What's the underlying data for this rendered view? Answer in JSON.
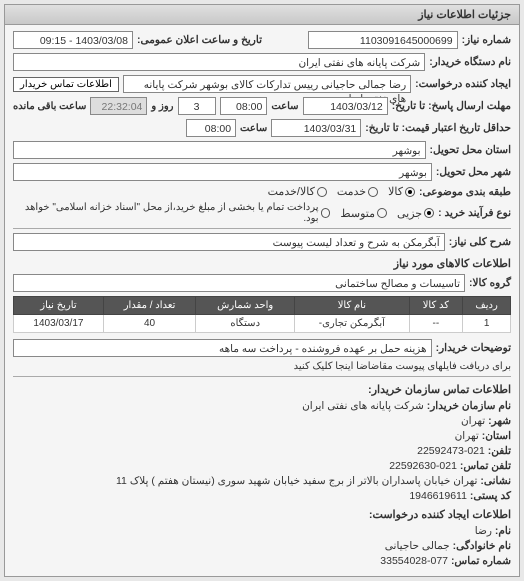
{
  "panel_title": "جزئیات اطلاعات نیاز",
  "fields": {
    "shomare_niaz_label": "شماره نیاز:",
    "shomare_niaz": "1103091645000699",
    "tarikh_saat_elan_label": "تاریخ و ساعت اعلان عمومی:",
    "tarikh_saat_elan": "1403/03/08 - 09:15",
    "dastgah_kharidar_label": "نام دستگاه خریدار:",
    "dastgah_kharidar": "شرکت پایانه های نفتی ایران",
    "ijad_konande_label": "ایجاد کننده درخواست:",
    "ijad_konande": "رضا جمالی حاجیانی رییس تدارکات کالای بوشهر شرکت پایانه های نفتی ایران",
    "etelaat_tamas_btn": "اطلاعات تماس خریدار",
    "mohlat_ersal_label": "مهلت ارسال پاسخ: تا تاریخ:",
    "mohlat_ersal_date": "1403/03/12",
    "saat_label": "ساعت",
    "mohlat_ersal_time": "08:00",
    "rooz_label": "روز و",
    "rooz_val": "3",
    "baghi_label": "ساعت باقی مانده",
    "baghi_time": "22:32:04",
    "hadaghal_tahvil_label": "حداقل تاریخ اعتبار قیمت: تا تاریخ:",
    "hadaghal_tahvil_date": "1403/03/31",
    "hadaghal_tahvil_time": "08:00",
    "ostan_tahvil_label": "استان محل تحویل:",
    "ostan_tahvil": "بوشهر",
    "shahr_tahvil_label": "شهر محل تحویل:",
    "shahr_tahvil": "بوشهر",
    "tabaghe_bandi_label": "طبقه بندی موضوعی:",
    "tabaghe_kala": "کالا",
    "tabaghe_khadamat": "خدمت",
    "tabaghe_both": "کالا/خدمت",
    "no_farayand_label": "نوع فرآیند خرید :",
    "farayand_jozi": "جزیی",
    "farayand_motavaset": "متوسط",
    "farayand_bakhshi": "پرداخت تمام یا بخشی از مبلغ خرید،از محل \"اسناد خزانه اسلامی\" خواهد بود.",
    "sharh_koli_label": "شرح کلی نیاز:",
    "sharh_koli": "آبگرمکن به شرح و تعداد لیست پیوست",
    "etelaat_kalaha_title": "اطلاعات کالاهای مورد نیاز",
    "gorooh_kala_label": "گروه کالا:",
    "gorooh_kala": "تاسیسات و مصالح ساختمانی",
    "tozihat_kharidar_label": "توضیحات خریدار:",
    "tozihat_kharidar": "هزینه حمل بر عهده فروشنده - پرداخت سه ماهه",
    "file_note": "برای دریافت فایلهای پیوست مقاضاضا اینجا کلیک کنید",
    "contacts_title": "اطلاعات تماس سازمان خریدار:",
    "nam_sazman_label": "نام سازمان خریدار:",
    "nam_sazman": "شرکت پایانه های نفتی ایران",
    "shahr_label": "شهر:",
    "shahr": "تهران",
    "ostan_label": "استان:",
    "ostan": "تهران",
    "telefon_label": "تلفن:",
    "telefon": "021-22592473",
    "telefon_namayesh_label": "تلفن تماس:",
    "telefon_namayesh": "021-22592630",
    "neshani_label": "نشانی:",
    "neshani": "تهران خیابان پاسداران بالاتر از برج سفید خیابان شهید سوری (نیستان هفتم ) پلاک 11",
    "kod_posti_label": "کد پستی:",
    "kod_posti": "1946619611",
    "ijad_konande2_title": "اطلاعات ایجاد کننده درخواست:",
    "nam_label": "نام:",
    "nam": "رضا",
    "nam_khanevadegi_label": "نام خانوادگی:",
    "nam_khanevadegi": "جمالی حاجیانی",
    "shomare_tamas_label": "شماره تماس:",
    "shomare_tamas": "077-33554028"
  },
  "table": {
    "columns": [
      "ردیف",
      "کد کالا",
      "نام کالا",
      "واحد شمارش",
      "تعداد / مقدار",
      "تاریخ نیاز"
    ],
    "rows": [
      [
        "1",
        "--",
        "آبگرمکن تجاری-",
        "دستگاه",
        "40",
        "1403/03/17"
      ]
    ]
  },
  "radios": {
    "tabaghe_selected": 0,
    "farayand_selected": 0
  },
  "colors": {
    "th_bg": "#555555",
    "th_fg": "#ffffff"
  }
}
